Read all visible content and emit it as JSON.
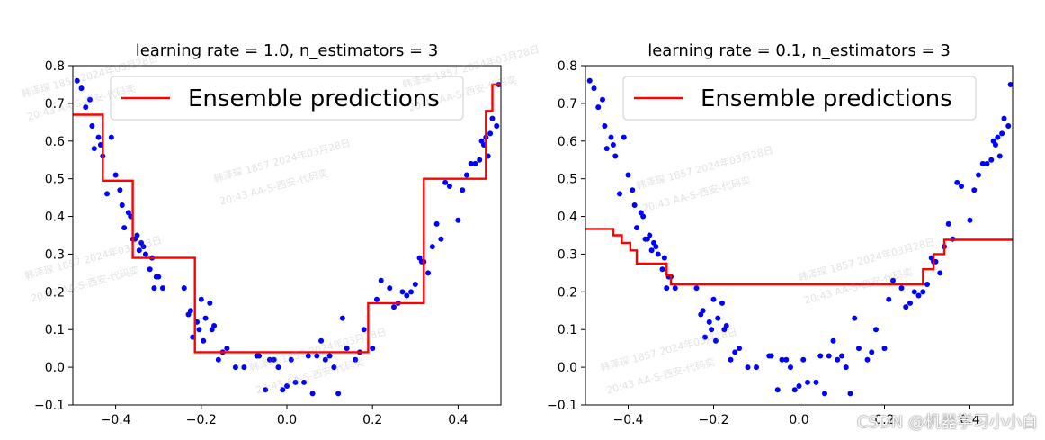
{
  "watermark": {
    "line1": "韩泽琛 1857 2024年03月28日",
    "line2": "20:43 AA-S-西安-代码奕"
  },
  "credit": "CSDN @机器学习小小白",
  "colors": {
    "points": "#0000ff",
    "prediction": "#ff0000",
    "axes": "#000000"
  },
  "chart_data": [
    {
      "type": "line",
      "title": "learning rate = 1.0, n_estimators = 3",
      "xlabel": "",
      "ylabel": "",
      "xlim": [
        -0.5,
        0.5
      ],
      "ylim": [
        -0.1,
        0.8
      ],
      "xticks": [
        -0.4,
        -0.2,
        0.0,
        0.2,
        0.4
      ],
      "xtick_labels": [
        "−0.4",
        "−0.2",
        "0.0",
        "0.2",
        "0.4"
      ],
      "yticks": [
        -0.1,
        0.0,
        0.1,
        0.2,
        0.3,
        0.4,
        0.5,
        0.6,
        0.7,
        0.8
      ],
      "ytick_labels": [
        "−0.1",
        "0.0",
        "0.1",
        "0.2",
        "0.3",
        "0.4",
        "0.5",
        "0.6",
        "0.7",
        "0.8"
      ],
      "legend": {
        "placement": "top-center",
        "entries": [
          "Ensemble predictions"
        ]
      },
      "grid": false,
      "series": [
        {
          "name": "Ensemble predictions",
          "kind": "step",
          "x": [
            -0.5,
            -0.43,
            -0.43,
            -0.36,
            -0.36,
            -0.215,
            -0.215,
            0.19,
            0.19,
            0.32,
            0.32,
            0.465,
            0.465,
            0.48,
            0.48,
            0.5
          ],
          "y": [
            0.67,
            0.67,
            0.495,
            0.495,
            0.29,
            0.29,
            0.04,
            0.04,
            0.17,
            0.17,
            0.5,
            0.5,
            0.68,
            0.68,
            0.75,
            0.75
          ]
        },
        {
          "kind": "scatter",
          "x": [
            -0.49,
            -0.48,
            -0.47,
            -0.46,
            -0.455,
            -0.45,
            -0.44,
            -0.435,
            -0.43,
            -0.42,
            -0.41,
            -0.4,
            -0.39,
            -0.385,
            -0.38,
            -0.37,
            -0.365,
            -0.36,
            -0.355,
            -0.35,
            -0.345,
            -0.34,
            -0.335,
            -0.33,
            -0.32,
            -0.315,
            -0.31,
            -0.305,
            -0.3,
            -0.29,
            -0.24,
            -0.23,
            -0.225,
            -0.22,
            -0.21,
            -0.205,
            -0.2,
            -0.195,
            -0.19,
            -0.18,
            -0.175,
            -0.17,
            -0.16,
            -0.15,
            -0.14,
            -0.12,
            -0.1,
            -0.07,
            -0.065,
            -0.05,
            -0.04,
            -0.03,
            -0.02,
            -0.01,
            0.0,
            0.01,
            0.02,
            0.04,
            0.05,
            0.06,
            0.07,
            0.08,
            0.09,
            0.1,
            0.11,
            0.12,
            0.13,
            0.14,
            0.16,
            0.17,
            0.18,
            0.2,
            0.21,
            0.22,
            0.24,
            0.25,
            0.26,
            0.27,
            0.28,
            0.29,
            0.3,
            0.31,
            0.315,
            0.32,
            0.33,
            0.34,
            0.35,
            0.36,
            0.37,
            0.38,
            0.4,
            0.41,
            0.42,
            0.43,
            0.44,
            0.45,
            0.455,
            0.46,
            0.465,
            0.47,
            0.475,
            0.48,
            0.49,
            0.495
          ],
          "y": [
            0.76,
            0.74,
            0.69,
            0.71,
            0.64,
            0.58,
            0.61,
            0.59,
            0.56,
            0.46,
            0.61,
            0.51,
            0.47,
            0.43,
            0.37,
            0.41,
            0.4,
            0.34,
            0.34,
            0.35,
            0.31,
            0.33,
            0.32,
            0.3,
            0.26,
            0.29,
            0.21,
            0.24,
            0.24,
            0.21,
            0.21,
            0.14,
            0.15,
            0.08,
            0.12,
            0.1,
            0.18,
            0.07,
            0.13,
            0.17,
            0.1,
            0.11,
            0.02,
            0.04,
            0.05,
            0.0,
            0.0,
            0.03,
            0.03,
            -0.06,
            0.02,
            0.02,
            0.0,
            -0.06,
            -0.05,
            0.02,
            -0.04,
            -0.04,
            0.03,
            -0.07,
            0.03,
            0.07,
            0.02,
            0.03,
            0.0,
            -0.07,
            0.13,
            0.05,
            0.02,
            0.04,
            0.1,
            0.05,
            0.18,
            0.23,
            0.21,
            0.16,
            0.17,
            0.2,
            0.19,
            0.2,
            0.22,
            0.29,
            0.28,
            0.28,
            0.25,
            0.32,
            0.38,
            0.34,
            0.49,
            0.48,
            0.39,
            0.47,
            0.51,
            0.54,
            0.54,
            0.55,
            0.6,
            0.59,
            0.61,
            0.56,
            0.62,
            0.66,
            0.64,
            0.75
          ]
        }
      ]
    },
    {
      "type": "line",
      "title": "learning rate = 0.1, n_estimators = 3",
      "xlabel": "",
      "ylabel": "",
      "xlim": [
        -0.5,
        0.5
      ],
      "ylim": [
        -0.1,
        0.8
      ],
      "xticks": [
        -0.4,
        -0.2,
        0.0,
        0.2,
        0.4
      ],
      "xtick_labels": [
        "−0.4",
        "−0.2",
        "0.0",
        "0.2",
        "0.4"
      ],
      "yticks": [
        -0.1,
        0.0,
        0.1,
        0.2,
        0.3,
        0.4,
        0.5,
        0.6,
        0.7,
        0.8
      ],
      "ytick_labels": [
        "−0.1",
        "0.0",
        "0.1",
        "0.2",
        "0.3",
        "0.4",
        "0.5",
        "0.6",
        "0.7",
        "0.8"
      ],
      "legend": {
        "placement": "top-center",
        "entries": [
          "Ensemble predictions"
        ]
      },
      "grid": false,
      "series": [
        {
          "name": "Ensemble predictions",
          "kind": "step",
          "x": [
            -0.5,
            -0.435,
            -0.435,
            -0.415,
            -0.415,
            -0.395,
            -0.395,
            -0.38,
            -0.38,
            -0.31,
            -0.31,
            -0.3,
            -0.3,
            0.29,
            0.29,
            0.315,
            0.315,
            0.34,
            0.34,
            0.5
          ],
          "y": [
            0.367,
            0.367,
            0.35,
            0.35,
            0.33,
            0.33,
            0.31,
            0.31,
            0.275,
            0.275,
            0.245,
            0.245,
            0.22,
            0.22,
            0.26,
            0.26,
            0.3,
            0.3,
            0.338,
            0.338
          ]
        },
        {
          "kind": "scatter",
          "x": [
            -0.49,
            -0.48,
            -0.47,
            -0.46,
            -0.455,
            -0.45,
            -0.44,
            -0.435,
            -0.43,
            -0.42,
            -0.41,
            -0.4,
            -0.39,
            -0.385,
            -0.38,
            -0.37,
            -0.365,
            -0.36,
            -0.355,
            -0.35,
            -0.345,
            -0.34,
            -0.335,
            -0.33,
            -0.32,
            -0.315,
            -0.31,
            -0.305,
            -0.3,
            -0.29,
            -0.24,
            -0.23,
            -0.225,
            -0.22,
            -0.21,
            -0.205,
            -0.2,
            -0.195,
            -0.19,
            -0.18,
            -0.175,
            -0.17,
            -0.16,
            -0.15,
            -0.14,
            -0.12,
            -0.1,
            -0.07,
            -0.065,
            -0.05,
            -0.04,
            -0.03,
            -0.02,
            -0.01,
            0.0,
            0.01,
            0.02,
            0.04,
            0.05,
            0.06,
            0.07,
            0.08,
            0.09,
            0.1,
            0.11,
            0.12,
            0.13,
            0.14,
            0.16,
            0.17,
            0.18,
            0.2,
            0.21,
            0.22,
            0.24,
            0.25,
            0.26,
            0.27,
            0.28,
            0.29,
            0.3,
            0.31,
            0.315,
            0.32,
            0.33,
            0.34,
            0.35,
            0.36,
            0.37,
            0.38,
            0.4,
            0.41,
            0.42,
            0.43,
            0.44,
            0.45,
            0.455,
            0.46,
            0.465,
            0.47,
            0.475,
            0.48,
            0.49,
            0.495
          ],
          "y": [
            0.76,
            0.74,
            0.69,
            0.71,
            0.64,
            0.58,
            0.61,
            0.59,
            0.56,
            0.46,
            0.61,
            0.51,
            0.47,
            0.43,
            0.37,
            0.41,
            0.4,
            0.34,
            0.34,
            0.35,
            0.31,
            0.33,
            0.32,
            0.3,
            0.26,
            0.29,
            0.21,
            0.24,
            0.24,
            0.21,
            0.21,
            0.14,
            0.15,
            0.08,
            0.12,
            0.1,
            0.18,
            0.07,
            0.13,
            0.17,
            0.1,
            0.11,
            0.02,
            0.04,
            0.05,
            0.0,
            0.0,
            0.03,
            0.03,
            -0.06,
            0.02,
            0.02,
            0.0,
            -0.06,
            -0.05,
            0.02,
            -0.04,
            -0.04,
            0.03,
            -0.07,
            0.03,
            0.07,
            0.02,
            0.03,
            0.0,
            -0.07,
            0.13,
            0.05,
            0.02,
            0.04,
            0.1,
            0.05,
            0.18,
            0.23,
            0.21,
            0.16,
            0.17,
            0.2,
            0.19,
            0.2,
            0.22,
            0.29,
            0.28,
            0.28,
            0.25,
            0.32,
            0.38,
            0.34,
            0.49,
            0.48,
            0.39,
            0.47,
            0.51,
            0.54,
            0.54,
            0.55,
            0.6,
            0.59,
            0.61,
            0.56,
            0.62,
            0.66,
            0.64,
            0.75
          ]
        }
      ]
    }
  ]
}
